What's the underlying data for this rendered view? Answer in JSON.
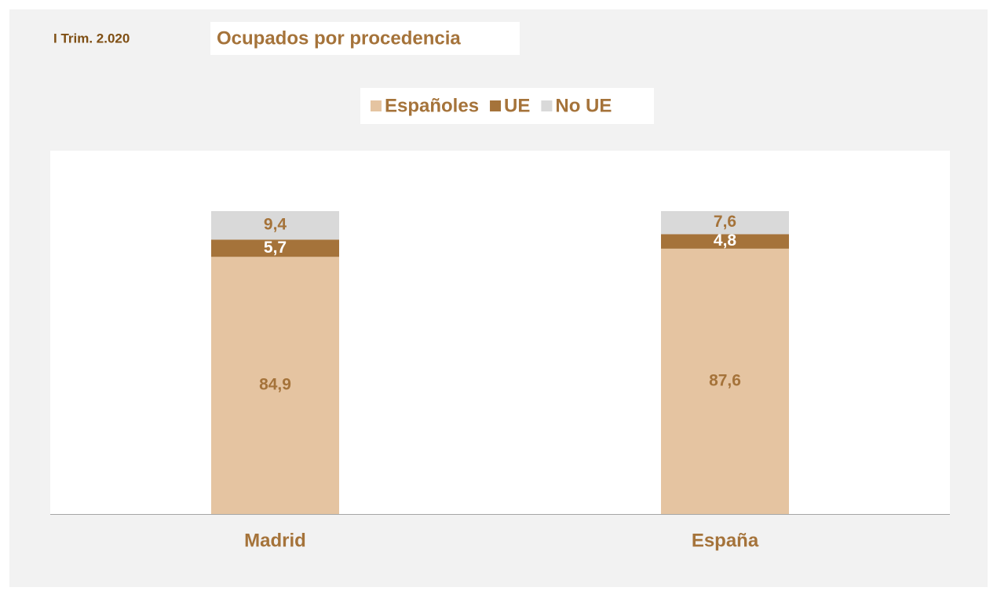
{
  "chart_data": {
    "type": "stacked_bar",
    "subtitle": "I Trim. 2.020",
    "title": "Ocupados por procedencia",
    "categories": [
      "Madrid",
      "España"
    ],
    "series": [
      {
        "name": "Españoles",
        "color": "#e5c4a1",
        "values": [
          84.9,
          87.6
        ],
        "value_labels": [
          "84,9",
          "87,6"
        ]
      },
      {
        "name": "UE",
        "color": "#a5733a",
        "values": [
          5.7,
          4.8
        ],
        "value_labels": [
          "5,7",
          "4,8"
        ]
      },
      {
        "name": "No UE",
        "color": "#d9d9d9",
        "values": [
          9.4,
          7.6
        ],
        "value_labels": [
          "9,4",
          "7,6"
        ]
      }
    ],
    "ylim": [
      0,
      100
    ]
  }
}
